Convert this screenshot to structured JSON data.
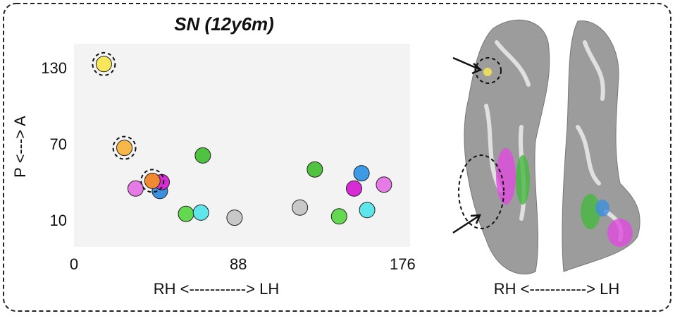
{
  "chart_data": {
    "type": "scatter",
    "title": "SN (12y6m)",
    "x_label": "RH <-----------> LH",
    "y_label": "P <---> A",
    "xlim": [
      0,
      180
    ],
    "ylim": [
      -10,
      150
    ],
    "xticks": [
      0,
      88,
      176
    ],
    "yticks": [
      10,
      70,
      130
    ],
    "background": "#f3f3f3",
    "x": [
      16,
      27,
      33,
      46,
      47,
      42,
      69,
      60,
      68,
      86,
      121,
      129,
      142,
      157,
      150,
      154,
      166
    ],
    "y": [
      134,
      68,
      36,
      34,
      41,
      42,
      62,
      16,
      17,
      13,
      21,
      51,
      14,
      19,
      36,
      48,
      39
    ],
    "colors": [
      "#f7e55a",
      "#f7b84a",
      "#e67be8",
      "#3d8fe0",
      "#d62bd6",
      "#f08a32",
      "#4fc23f",
      "#63d94f",
      "#5ee6ea",
      "#c8c8c8",
      "#c8c8c8",
      "#4fc23f",
      "#63d94f",
      "#5ee6ea",
      "#d62bd6",
      "#3d9be6",
      "#e67be8"
    ],
    "highlighted": [
      true,
      true,
      false,
      false,
      false,
      true,
      false,
      false,
      false,
      false,
      false,
      false,
      false,
      false,
      false,
      false,
      false
    ]
  },
  "brain_image": {
    "axis_label": "RH <-----------> LH"
  }
}
